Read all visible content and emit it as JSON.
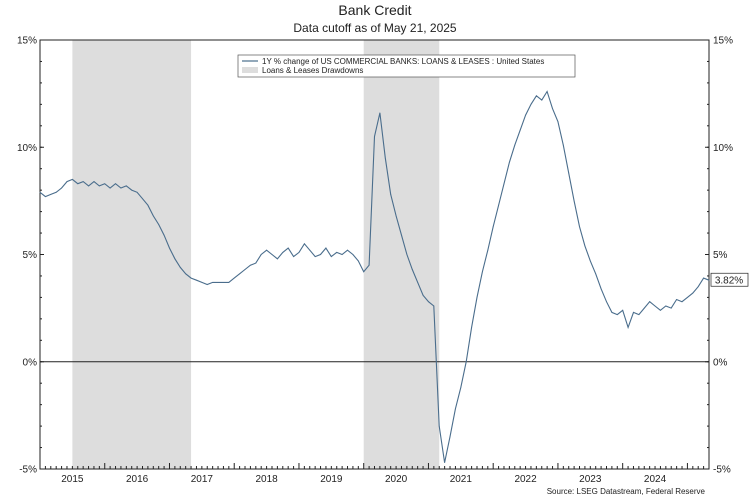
{
  "chart_data": {
    "type": "line",
    "title": "Bank Credit",
    "subtitle": "Data cutoff as of May 21, 2025",
    "source": "Source: LSEG Datastream, Federal Reserve",
    "y_ticks": [
      15,
      10,
      5,
      0,
      -5
    ],
    "y_tick_labels": [
      "15%",
      "10%",
      "5%",
      "0%",
      "-5%"
    ],
    "ylim": [
      -5,
      15
    ],
    "x_tick_labels": [
      "2015",
      "2016",
      "2017",
      "2018",
      "2019",
      "2020",
      "2021",
      "2022",
      "2023",
      "2024"
    ],
    "xlim": [
      "2015-01",
      "2025-05"
    ],
    "grid": false,
    "zero_line": true,
    "legend_position": "top-center",
    "last_value_label": "3.82%",
    "series": [
      {
        "name": "1Y % change of US COMMERCIAL BANKS: LOANS & LEASES : United States",
        "color": "#4a6d8c",
        "points": [
          [
            "2015-01",
            7.9
          ],
          [
            "2015-02",
            7.7
          ],
          [
            "2015-03",
            7.8
          ],
          [
            "2015-04",
            7.9
          ],
          [
            "2015-05",
            8.1
          ],
          [
            "2015-06",
            8.4
          ],
          [
            "2015-07",
            8.5
          ],
          [
            "2015-08",
            8.3
          ],
          [
            "2015-09",
            8.4
          ],
          [
            "2015-10",
            8.2
          ],
          [
            "2015-11",
            8.4
          ],
          [
            "2015-12",
            8.2
          ],
          [
            "2016-01",
            8.3
          ],
          [
            "2016-02",
            8.1
          ],
          [
            "2016-03",
            8.3
          ],
          [
            "2016-04",
            8.1
          ],
          [
            "2016-05",
            8.2
          ],
          [
            "2016-06",
            8.0
          ],
          [
            "2016-07",
            7.9
          ],
          [
            "2016-08",
            7.6
          ],
          [
            "2016-09",
            7.3
          ],
          [
            "2016-10",
            6.8
          ],
          [
            "2016-11",
            6.4
          ],
          [
            "2016-12",
            5.9
          ],
          [
            "2017-01",
            5.3
          ],
          [
            "2017-02",
            4.8
          ],
          [
            "2017-03",
            4.4
          ],
          [
            "2017-04",
            4.1
          ],
          [
            "2017-05",
            3.9
          ],
          [
            "2017-06",
            3.8
          ],
          [
            "2017-07",
            3.7
          ],
          [
            "2017-08",
            3.6
          ],
          [
            "2017-09",
            3.7
          ],
          [
            "2017-10",
            3.7
          ],
          [
            "2017-11",
            3.7
          ],
          [
            "2017-12",
            3.7
          ],
          [
            "2018-01",
            3.9
          ],
          [
            "2018-02",
            4.1
          ],
          [
            "2018-03",
            4.3
          ],
          [
            "2018-04",
            4.5
          ],
          [
            "2018-05",
            4.6
          ],
          [
            "2018-06",
            5.0
          ],
          [
            "2018-07",
            5.2
          ],
          [
            "2018-08",
            5.0
          ],
          [
            "2018-09",
            4.8
          ],
          [
            "2018-10",
            5.1
          ],
          [
            "2018-11",
            5.3
          ],
          [
            "2018-12",
            4.9
          ],
          [
            "2019-01",
            5.1
          ],
          [
            "2019-02",
            5.5
          ],
          [
            "2019-03",
            5.2
          ],
          [
            "2019-04",
            4.9
          ],
          [
            "2019-05",
            5.0
          ],
          [
            "2019-06",
            5.3
          ],
          [
            "2019-07",
            4.9
          ],
          [
            "2019-08",
            5.1
          ],
          [
            "2019-09",
            5.0
          ],
          [
            "2019-10",
            5.2
          ],
          [
            "2019-11",
            5.0
          ],
          [
            "2019-12",
            4.7
          ],
          [
            "2020-01",
            4.2
          ],
          [
            "2020-02",
            4.5
          ],
          [
            "2020-03",
            10.5
          ],
          [
            "2020-04",
            11.6
          ],
          [
            "2020-05",
            9.5
          ],
          [
            "2020-06",
            7.8
          ],
          [
            "2020-07",
            6.8
          ],
          [
            "2020-08",
            5.9
          ],
          [
            "2020-09",
            5.0
          ],
          [
            "2020-10",
            4.3
          ],
          [
            "2020-11",
            3.7
          ],
          [
            "2020-12",
            3.1
          ],
          [
            "2021-01",
            2.8
          ],
          [
            "2021-02",
            2.6
          ],
          [
            "2021-03",
            -3.0
          ],
          [
            "2021-04",
            -4.7
          ],
          [
            "2021-05",
            -3.5
          ],
          [
            "2021-06",
            -2.2
          ],
          [
            "2021-07",
            -1.2
          ],
          [
            "2021-08",
            0.0
          ],
          [
            "2021-09",
            1.6
          ],
          [
            "2021-10",
            3.0
          ],
          [
            "2021-11",
            4.2
          ],
          [
            "2021-12",
            5.2
          ],
          [
            "2022-01",
            6.3
          ],
          [
            "2022-02",
            7.3
          ],
          [
            "2022-03",
            8.3
          ],
          [
            "2022-04",
            9.3
          ],
          [
            "2022-05",
            10.1
          ],
          [
            "2022-06",
            10.8
          ],
          [
            "2022-07",
            11.5
          ],
          [
            "2022-08",
            12.0
          ],
          [
            "2022-09",
            12.4
          ],
          [
            "2022-10",
            12.2
          ],
          [
            "2022-11",
            12.6
          ],
          [
            "2022-12",
            11.8
          ],
          [
            "2023-01",
            11.2
          ],
          [
            "2023-02",
            10.1
          ],
          [
            "2023-03",
            8.8
          ],
          [
            "2023-04",
            7.5
          ],
          [
            "2023-05",
            6.3
          ],
          [
            "2023-06",
            5.4
          ],
          [
            "2023-07",
            4.7
          ],
          [
            "2023-08",
            4.1
          ],
          [
            "2023-09",
            3.4
          ],
          [
            "2023-10",
            2.8
          ],
          [
            "2023-11",
            2.3
          ],
          [
            "2023-12",
            2.2
          ],
          [
            "2024-01",
            2.4
          ],
          [
            "2024-02",
            1.6
          ],
          [
            "2024-03",
            2.3
          ],
          [
            "2024-04",
            2.2
          ],
          [
            "2024-05",
            2.5
          ],
          [
            "2024-06",
            2.8
          ],
          [
            "2024-07",
            2.6
          ],
          [
            "2024-08",
            2.4
          ],
          [
            "2024-09",
            2.6
          ],
          [
            "2024-10",
            2.5
          ],
          [
            "2024-11",
            2.9
          ],
          [
            "2024-12",
            2.8
          ],
          [
            "2025-01",
            3.0
          ],
          [
            "2025-02",
            3.2
          ],
          [
            "2025-03",
            3.5
          ],
          [
            "2025-04",
            3.9
          ],
          [
            "2025-05",
            3.8
          ]
        ]
      }
    ],
    "shaded_regions": {
      "name": "Loans & Leases Drawdowns",
      "color": "#dddddd",
      "ranges": [
        [
          "2015-07",
          "2017-05"
        ],
        [
          "2020-01",
          "2021-03"
        ]
      ]
    }
  }
}
